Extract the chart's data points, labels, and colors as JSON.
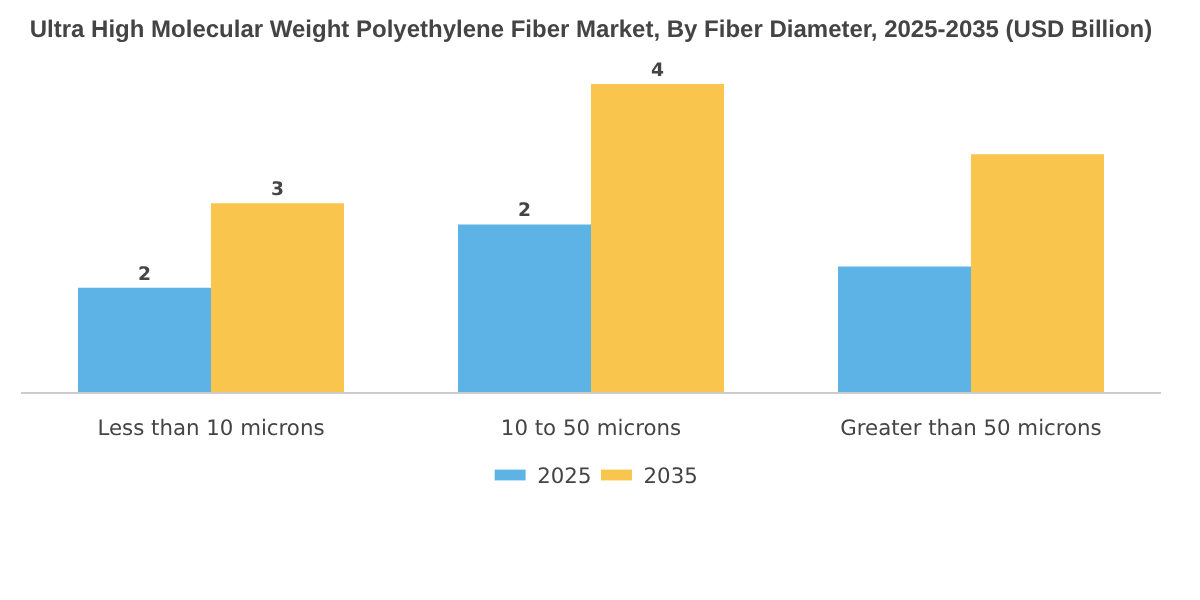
{
  "chart_data": {
    "type": "bar",
    "title": "Ultra High Molecular Weight Polyethylene Fiber Market, By Fiber Diameter, 2025-2035 (USD Billion)",
    "categories": [
      "Less than 10 microns",
      "10 to 50 microns",
      "Greater than 50 microns"
    ],
    "tick_labels": "x",
    "series": [
      {
        "name": "2025",
        "color": "#5db3e6",
        "values": [
          1.5,
          2.4,
          1.8
        ],
        "value_labels": [
          "2",
          "2",
          null
        ]
      },
      {
        "name": "2035",
        "color": "#f9c54d",
        "values": [
          2.7,
          4.4,
          3.4
        ],
        "value_labels": [
          "3",
          "4",
          null
        ]
      }
    ],
    "legend": "bottom"
  }
}
